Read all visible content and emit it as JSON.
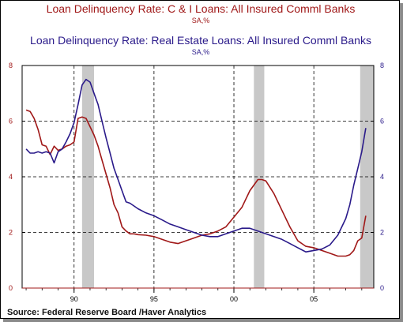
{
  "chart_data": {
    "type": "line",
    "title_1": "Loan Delinquency Rate: C & I Loans: All Insured Comml Banks",
    "units_1": "SA,%",
    "title_2": "Loan Delinquency Rate: Real Estate Loans: All Insured Comml Banks",
    "units_2": "SA,%",
    "source": "Source:  Federal Reserve Board /Haver Analytics",
    "xlim": [
      1986.75,
      2008.75
    ],
    "ylim": [
      0,
      8
    ],
    "x_ticks": [
      {
        "value": 1990,
        "label": "90"
      },
      {
        "value": 1995,
        "label": "95"
      },
      {
        "value": 2000,
        "label": "00"
      },
      {
        "value": 2005,
        "label": "05"
      }
    ],
    "y_ticks": [
      0,
      2,
      4,
      6,
      8
    ],
    "y_tick_labels": [
      "0",
      "2",
      "4",
      "6",
      "8"
    ],
    "grid": "dashed at major ticks",
    "recessions": [
      [
        1990.5,
        1991.25
      ],
      [
        2001.25,
        2001.9
      ],
      [
        2007.9,
        2009.5
      ]
    ],
    "series": [
      {
        "color": "#a01818",
        "x": [
          1987.0,
          1987.25,
          1987.5,
          1987.75,
          1988.0,
          1988.25,
          1988.5,
          1988.75,
          1989.0,
          1989.25,
          1989.5,
          1989.75,
          1990.0,
          1990.25,
          1990.5,
          1990.75,
          1991.0,
          1991.25,
          1991.5,
          1991.75,
          1992.0,
          1992.25,
          1992.5,
          1992.75,
          1993.0,
          1993.25,
          1993.5,
          1993.75,
          1994.0,
          1994.5,
          1995.0,
          1995.5,
          1996.0,
          1996.5,
          1997.0,
          1997.5,
          1998.0,
          1998.5,
          1999.0,
          1999.5,
          2000.0,
          2000.5,
          2001.0,
          2001.5,
          2001.75,
          2002.0,
          2002.5,
          2003.0,
          2003.5,
          2004.0,
          2004.5,
          2005.0,
          2005.5,
          2006.0,
          2006.5,
          2007.0,
          2007.25,
          2007.5,
          2007.75,
          2008.0,
          2008.25
        ],
        "values": [
          6.4,
          6.35,
          6.1,
          5.7,
          5.15,
          5.1,
          4.8,
          5.1,
          4.95,
          5.0,
          5.1,
          5.15,
          5.25,
          6.1,
          6.15,
          6.1,
          5.8,
          5.5,
          5.1,
          4.6,
          4.1,
          3.6,
          3.0,
          2.7,
          2.2,
          2.05,
          1.95,
          1.95,
          1.92,
          1.9,
          1.85,
          1.75,
          1.65,
          1.6,
          1.7,
          1.8,
          1.9,
          1.95,
          2.05,
          2.2,
          2.55,
          2.9,
          3.5,
          3.9,
          3.9,
          3.85,
          3.4,
          2.8,
          2.2,
          1.7,
          1.5,
          1.45,
          1.35,
          1.25,
          1.15,
          1.15,
          1.2,
          1.35,
          1.7,
          1.8,
          2.6
        ]
      },
      {
        "color": "#2a1a8a",
        "x": [
          1987.0,
          1987.25,
          1987.5,
          1987.75,
          1988.0,
          1988.25,
          1988.5,
          1988.75,
          1989.0,
          1989.25,
          1989.5,
          1989.75,
          1990.0,
          1990.25,
          1990.5,
          1990.75,
          1991.0,
          1991.25,
          1991.5,
          1991.75,
          1992.0,
          1992.25,
          1992.5,
          1992.75,
          1993.0,
          1993.25,
          1993.5,
          1993.75,
          1994.0,
          1994.5,
          1995.0,
          1995.5,
          1996.0,
          1996.5,
          1997.0,
          1997.5,
          1998.0,
          1998.5,
          1999.0,
          1999.5,
          2000.0,
          2000.5,
          2001.0,
          2001.5,
          2002.0,
          2002.5,
          2003.0,
          2003.5,
          2004.0,
          2004.5,
          2005.0,
          2005.5,
          2006.0,
          2006.5,
          2007.0,
          2007.25,
          2007.5,
          2007.75,
          2008.0,
          2008.25
        ],
        "values": [
          5.0,
          4.85,
          4.85,
          4.9,
          4.85,
          4.9,
          4.85,
          4.5,
          4.9,
          5.0,
          5.25,
          5.55,
          5.95,
          6.6,
          7.3,
          7.5,
          7.4,
          7.0,
          6.6,
          6.0,
          5.4,
          4.85,
          4.3,
          3.9,
          3.5,
          3.1,
          3.05,
          2.95,
          2.85,
          2.7,
          2.6,
          2.45,
          2.3,
          2.2,
          2.1,
          2.0,
          1.9,
          1.85,
          1.85,
          1.95,
          2.05,
          2.15,
          2.15,
          2.05,
          1.95,
          1.85,
          1.75,
          1.6,
          1.45,
          1.3,
          1.35,
          1.4,
          1.55,
          1.9,
          2.5,
          3.0,
          3.7,
          4.3,
          4.9,
          5.75
        ]
      }
    ]
  }
}
